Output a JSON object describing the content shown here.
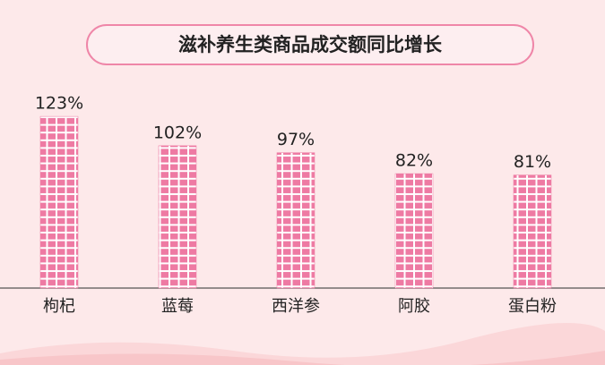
{
  "chart_data": {
    "type": "bar",
    "title": "滋补养生类商品成交额同比增长",
    "categories": [
      "枸杞",
      "蓝莓",
      "西洋参",
      "阿胶",
      "蛋白粉"
    ],
    "values": [
      123,
      102,
      97,
      82,
      81
    ],
    "value_labels": [
      "123%",
      "102%",
      "97%",
      "82%",
      "81%"
    ],
    "color": "#ee7aa3"
  }
}
